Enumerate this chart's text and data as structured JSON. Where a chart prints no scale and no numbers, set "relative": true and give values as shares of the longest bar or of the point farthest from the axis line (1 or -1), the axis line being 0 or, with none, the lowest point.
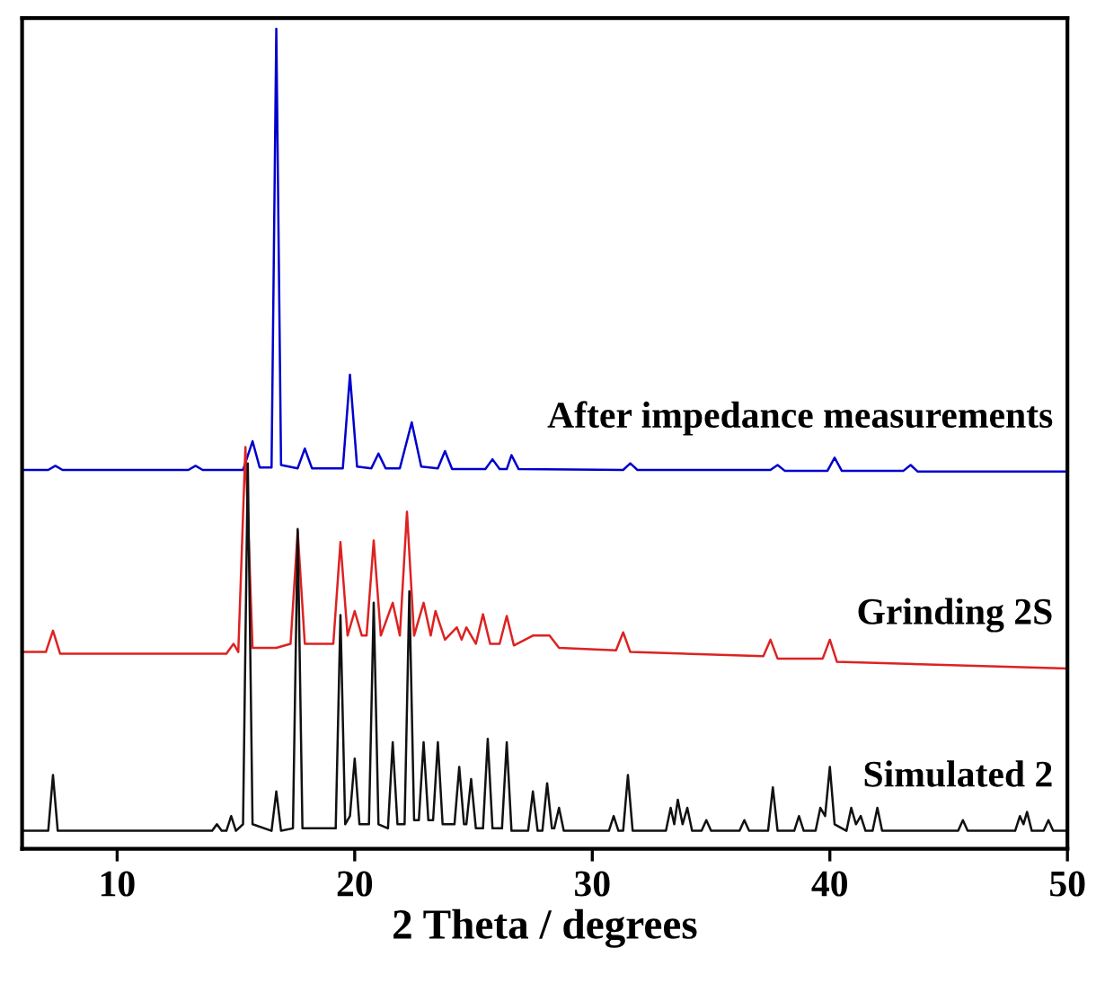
{
  "chart_data": {
    "type": "line",
    "relative": true,
    "xlabel": "2 Theta / degrees",
    "xlim": [
      6,
      50
    ],
    "xticks": [
      10,
      20,
      30,
      40,
      50
    ],
    "grid": false,
    "legend": false,
    "marker": "none",
    "line_style": "solid",
    "series": [
      {
        "name": "After impedance measurements",
        "color": "#0000cc",
        "x": [
          6,
          7.1,
          7.4,
          7.7,
          13.0,
          13.3,
          13.6,
          15.3,
          15.7,
          16.0,
          16.5,
          16.7,
          16.9,
          17.6,
          17.9,
          18.2,
          19.5,
          19.8,
          20.1,
          20.7,
          21.0,
          21.3,
          21.9,
          22.4,
          22.8,
          23.5,
          23.8,
          24.1,
          25.5,
          25.8,
          26.1,
          26.4,
          26.6,
          26.9,
          31.3,
          31.6,
          31.9,
          37.5,
          37.8,
          38.1,
          39.9,
          40.2,
          40.5,
          43.1,
          43.4,
          43.7,
          50
        ],
        "values": [
          0.462,
          0.462,
          0.467,
          0.462,
          0.462,
          0.467,
          0.462,
          0.462,
          0.497,
          0.465,
          0.465,
          1.0,
          0.468,
          0.464,
          0.488,
          0.464,
          0.464,
          0.578,
          0.466,
          0.464,
          0.482,
          0.464,
          0.464,
          0.52,
          0.466,
          0.464,
          0.485,
          0.463,
          0.463,
          0.475,
          0.463,
          0.463,
          0.48,
          0.463,
          0.462,
          0.47,
          0.462,
          0.462,
          0.468,
          0.461,
          0.461,
          0.477,
          0.461,
          0.461,
          0.468,
          0.46,
          0.46
        ]
      },
      {
        "name": "Grinding 2S",
        "color": "#dd2222",
        "x": [
          6,
          7.0,
          7.3,
          7.6,
          14.6,
          14.9,
          15.1,
          15.4,
          15.7,
          16.7,
          17.3,
          17.6,
          17.9,
          19.1,
          19.4,
          19.7,
          20.0,
          20.3,
          20.5,
          20.8,
          21.1,
          21.6,
          21.9,
          22.2,
          22.5,
          22.9,
          23.2,
          23.4,
          23.8,
          24.3,
          24.5,
          24.7,
          25.1,
          25.4,
          25.7,
          26.1,
          26.4,
          26.7,
          27.5,
          28.2,
          28.6,
          31.0,
          31.3,
          31.6,
          37.2,
          37.5,
          37.8,
          39.7,
          40.0,
          40.3,
          50
        ],
        "values": [
          0.24,
          0.24,
          0.266,
          0.238,
          0.238,
          0.25,
          0.24,
          0.49,
          0.245,
          0.245,
          0.25,
          0.387,
          0.25,
          0.25,
          0.374,
          0.26,
          0.29,
          0.26,
          0.26,
          0.376,
          0.26,
          0.3,
          0.26,
          0.411,
          0.26,
          0.3,
          0.26,
          0.29,
          0.255,
          0.27,
          0.255,
          0.27,
          0.25,
          0.286,
          0.25,
          0.25,
          0.284,
          0.248,
          0.26,
          0.26,
          0.245,
          0.242,
          0.264,
          0.24,
          0.235,
          0.255,
          0.232,
          0.232,
          0.255,
          0.228,
          0.22
        ]
      },
      {
        "name": "Simulated 2",
        "color": "#111111",
        "x": [
          6,
          7.1,
          7.3,
          7.5,
          14.0,
          14.2,
          14.4,
          14.6,
          14.8,
          15.0,
          15.3,
          15.5,
          15.7,
          16.5,
          16.7,
          16.9,
          17.4,
          17.6,
          17.8,
          19.2,
          19.4,
          19.6,
          19.8,
          20.0,
          20.2,
          20.6,
          20.8,
          21.0,
          21.4,
          21.6,
          21.8,
          22.1,
          22.3,
          22.5,
          22.7,
          22.9,
          23.1,
          23.3,
          23.5,
          23.7,
          24.2,
          24.4,
          24.6,
          24.7,
          24.9,
          25.1,
          25.4,
          25.6,
          25.8,
          26.2,
          26.4,
          26.6,
          27.3,
          27.5,
          27.7,
          27.9,
          28.1,
          28.3,
          28.4,
          28.6,
          28.8,
          30.7,
          30.9,
          31.1,
          31.3,
          31.5,
          31.7,
          33.1,
          33.3,
          33.45,
          33.6,
          33.8,
          34.0,
          34.2,
          34.6,
          34.8,
          35.0,
          36.2,
          36.4,
          36.6,
          37.4,
          37.6,
          37.8,
          38.5,
          38.7,
          38.9,
          39.4,
          39.6,
          39.8,
          40.0,
          40.2,
          40.7,
          40.9,
          41.1,
          41.3,
          41.5,
          41.8,
          42.0,
          42.2,
          45.4,
          45.6,
          45.8,
          47.8,
          48.0,
          48.15,
          48.3,
          48.5,
          49.0,
          49.2,
          49.4,
          50
        ],
        "values": [
          0.022,
          0.022,
          0.09,
          0.022,
          0.022,
          0.03,
          0.022,
          0.022,
          0.04,
          0.022,
          0.03,
          0.47,
          0.03,
          0.022,
          0.07,
          0.022,
          0.025,
          0.39,
          0.025,
          0.025,
          0.285,
          0.03,
          0.04,
          0.11,
          0.03,
          0.03,
          0.3,
          0.03,
          0.025,
          0.13,
          0.03,
          0.03,
          0.314,
          0.035,
          0.035,
          0.13,
          0.035,
          0.035,
          0.13,
          0.03,
          0.03,
          0.1,
          0.03,
          0.03,
          0.085,
          0.025,
          0.025,
          0.134,
          0.025,
          0.025,
          0.13,
          0.022,
          0.022,
          0.07,
          0.022,
          0.022,
          0.08,
          0.025,
          0.025,
          0.05,
          0.022,
          0.022,
          0.04,
          0.022,
          0.022,
          0.09,
          0.022,
          0.022,
          0.05,
          0.03,
          0.06,
          0.03,
          0.05,
          0.022,
          0.022,
          0.035,
          0.022,
          0.022,
          0.035,
          0.022,
          0.022,
          0.075,
          0.022,
          0.022,
          0.04,
          0.022,
          0.022,
          0.05,
          0.04,
          0.1,
          0.03,
          0.022,
          0.05,
          0.03,
          0.04,
          0.022,
          0.022,
          0.05,
          0.022,
          0.022,
          0.035,
          0.022,
          0.022,
          0.04,
          0.03,
          0.045,
          0.022,
          0.022,
          0.035,
          0.022,
          0.022
        ]
      }
    ]
  }
}
